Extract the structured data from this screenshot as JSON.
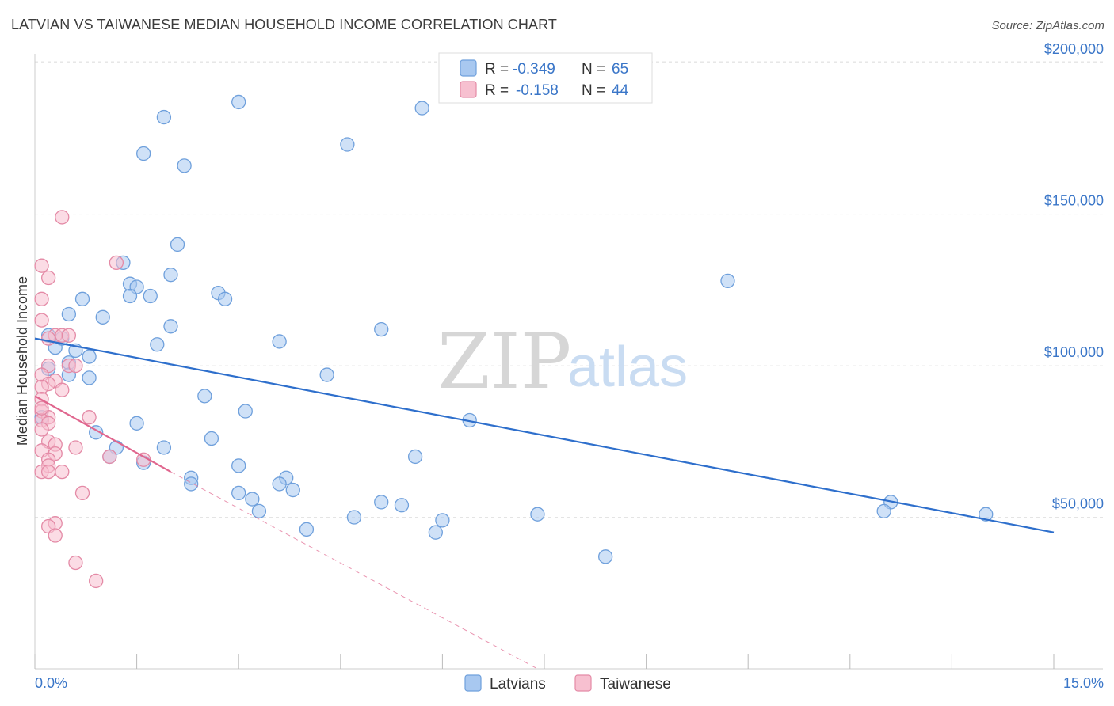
{
  "header": {
    "title": "LATVIAN VS TAIWANESE MEDIAN HOUSEHOLD INCOME CORRELATION CHART",
    "source": "Source: ZipAtlas.com"
  },
  "watermark": {
    "zip": "ZIP",
    "atlas": "atlas"
  },
  "legend_top": [
    {
      "r_label": "R =",
      "r_value": "-0.349",
      "n_label": "N =",
      "n_value": "65",
      "color": "#a8c8f0",
      "stroke": "#6fa0dc"
    },
    {
      "r_label": "R =",
      "r_value": "-0.158",
      "n_label": "N =",
      "n_value": "44",
      "color": "#f7c0d0",
      "stroke": "#e48aa6"
    }
  ],
  "legend_bottom": [
    {
      "label": "Latvians",
      "color": "#a8c8f0",
      "stroke": "#6fa0dc"
    },
    {
      "label": "Taiwanese",
      "color": "#f7c0d0",
      "stroke": "#e48aa6"
    }
  ],
  "chart_data": {
    "type": "scatter",
    "title": "LATVIAN VS TAIWANESE MEDIAN HOUSEHOLD INCOME CORRELATION CHART",
    "xlabel": "",
    "ylabel": "Median Household Income",
    "xlim": [
      0,
      15
    ],
    "ylim": [
      0,
      205000
    ],
    "x_tick_labels": [
      "0.0%",
      "15.0%"
    ],
    "y_ticks": [
      50000,
      100000,
      150000,
      200000
    ],
    "y_tick_labels": [
      "$50,000",
      "$100,000",
      "$150,000",
      "$200,000"
    ],
    "grid": true,
    "series": [
      {
        "name": "Latvians",
        "color": "#6fa0dc",
        "fill": "#a8c8f0",
        "trend": {
          "x": [
            0.0,
            15.0
          ],
          "y": [
            109000,
            45000
          ],
          "color": "#2e6fcc"
        },
        "points": [
          [
            1.9,
            182000
          ],
          [
            3.0,
            187000
          ],
          [
            5.7,
            185000
          ],
          [
            1.6,
            170000
          ],
          [
            2.2,
            166000
          ],
          [
            4.6,
            173000
          ],
          [
            2.1,
            140000
          ],
          [
            1.3,
            134000
          ],
          [
            1.4,
            127000
          ],
          [
            1.5,
            126000
          ],
          [
            2.0,
            130000
          ],
          [
            2.7,
            124000
          ],
          [
            2.8,
            122000
          ],
          [
            1.7,
            123000
          ],
          [
            1.4,
            123000
          ],
          [
            0.7,
            122000
          ],
          [
            0.5,
            117000
          ],
          [
            1.0,
            116000
          ],
          [
            2.0,
            113000
          ],
          [
            5.1,
            112000
          ],
          [
            3.6,
            108000
          ],
          [
            1.8,
            107000
          ],
          [
            0.3,
            106000
          ],
          [
            0.6,
            105000
          ],
          [
            0.4,
            109000
          ],
          [
            0.2,
            110000
          ],
          [
            0.8,
            103000
          ],
          [
            0.5,
            101000
          ],
          [
            0.2,
            99000
          ],
          [
            0.8,
            96000
          ],
          [
            0.5,
            97000
          ],
          [
            4.3,
            97000
          ],
          [
            2.5,
            90000
          ],
          [
            3.1,
            85000
          ],
          [
            6.4,
            82000
          ],
          [
            1.5,
            81000
          ],
          [
            0.9,
            78000
          ],
          [
            2.6,
            76000
          ],
          [
            1.2,
            73000
          ],
          [
            1.9,
            73000
          ],
          [
            1.1,
            70000
          ],
          [
            1.6,
            68000
          ],
          [
            3.0,
            67000
          ],
          [
            5.6,
            70000
          ],
          [
            2.3,
            63000
          ],
          [
            2.3,
            61000
          ],
          [
            3.7,
            63000
          ],
          [
            3.6,
            61000
          ],
          [
            3.8,
            59000
          ],
          [
            3.0,
            58000
          ],
          [
            3.2,
            56000
          ],
          [
            3.3,
            52000
          ],
          [
            5.1,
            55000
          ],
          [
            5.4,
            54000
          ],
          [
            4.0,
            46000
          ],
          [
            4.7,
            50000
          ],
          [
            6.0,
            49000
          ],
          [
            5.9,
            45000
          ],
          [
            7.4,
            51000
          ],
          [
            8.4,
            37000
          ],
          [
            10.2,
            128000
          ],
          [
            12.6,
            55000
          ],
          [
            12.5,
            52000
          ],
          [
            14.0,
            51000
          ],
          [
            0.1,
            83000
          ]
        ]
      },
      {
        "name": "Taiwanese",
        "color": "#e48aa6",
        "fill": "#f7c0d0",
        "trend": {
          "x": [
            0.0,
            2.0
          ],
          "y": [
            90000,
            65000
          ],
          "color": "#e0668e",
          "dash_to": [
            7.4,
            0
          ]
        },
        "points": [
          [
            0.4,
            149000
          ],
          [
            1.2,
            134000
          ],
          [
            0.1,
            133000
          ],
          [
            0.2,
            129000
          ],
          [
            0.1,
            122000
          ],
          [
            0.1,
            115000
          ],
          [
            0.3,
            110000
          ],
          [
            0.4,
            110000
          ],
          [
            0.5,
            110000
          ],
          [
            0.2,
            109000
          ],
          [
            0.2,
            100000
          ],
          [
            0.5,
            100000
          ],
          [
            0.6,
            100000
          ],
          [
            0.1,
            97000
          ],
          [
            0.3,
            95000
          ],
          [
            0.2,
            94000
          ],
          [
            0.1,
            93000
          ],
          [
            0.4,
            92000
          ],
          [
            0.1,
            89000
          ],
          [
            0.1,
            85000
          ],
          [
            0.2,
            83000
          ],
          [
            0.1,
            82000
          ],
          [
            0.2,
            81000
          ],
          [
            0.1,
            79000
          ],
          [
            0.8,
            83000
          ],
          [
            0.2,
            75000
          ],
          [
            0.3,
            74000
          ],
          [
            0.6,
            73000
          ],
          [
            0.1,
            72000
          ],
          [
            0.3,
            71000
          ],
          [
            1.1,
            70000
          ],
          [
            0.2,
            69000
          ],
          [
            1.6,
            69000
          ],
          [
            0.2,
            67000
          ],
          [
            0.1,
            65000
          ],
          [
            0.2,
            65000
          ],
          [
            0.4,
            65000
          ],
          [
            0.7,
            58000
          ],
          [
            0.3,
            48000
          ],
          [
            0.2,
            47000
          ],
          [
            0.3,
            44000
          ],
          [
            0.6,
            35000
          ],
          [
            0.9,
            29000
          ],
          [
            0.1,
            86000
          ]
        ]
      }
    ]
  }
}
